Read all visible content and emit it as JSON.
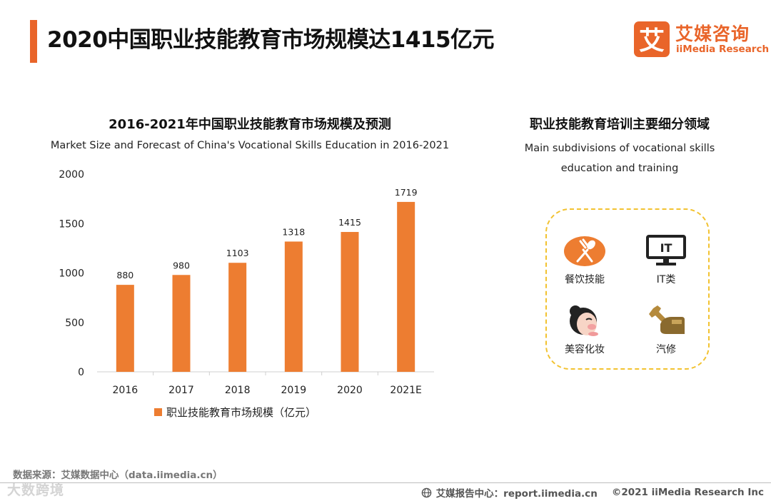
{
  "header": {
    "title": "2020中国职业技能教育市场规模达1415亿元",
    "brand_cn": "艾媒咨询",
    "brand_en": "iiMedia Research",
    "brand_logo_glyph": "艾"
  },
  "chart_data": {
    "type": "bar",
    "title": "2016-2021年中国职业技能教育市场规模及预测",
    "subtitle": "Market Size and Forecast of China's Vocational Skills Education in 2016-2021",
    "categories": [
      "2016",
      "2017",
      "2018",
      "2019",
      "2020",
      "2021E"
    ],
    "series": [
      {
        "name": "职业技能教育市场规模（亿元）",
        "values": [
          880,
          980,
          1103,
          1318,
          1415,
          1719
        ]
      }
    ],
    "ylim": [
      0,
      2000
    ],
    "yticks": [
      0,
      500,
      1000,
      1500,
      2000
    ],
    "xlabel": "",
    "ylabel": "",
    "grid": false,
    "legend_position": "bottom",
    "colors": {
      "bar": "#ed7d31"
    }
  },
  "subdivisions": {
    "title": "职业技能教育培训主要细分领域",
    "desc_lines": [
      "Main subdivisions of vocational skills",
      "education and training"
    ],
    "items": [
      {
        "label": "餐饮技能",
        "icon": "fork-spoon-icon"
      },
      {
        "label": "IT类",
        "icon": "monitor-icon"
      },
      {
        "label": "美容化妆",
        "icon": "makeup-face-icon"
      },
      {
        "label": "汽修",
        "icon": "wrench-hand-icon"
      }
    ]
  },
  "footer": {
    "source": "数据来源：艾媒数据中心（data.iimedia.cn）",
    "report": "艾媒报告中心：report.iimedia.cn",
    "copyright": "©2021  iiMedia Research  Inc",
    "watermark": "大数跨境"
  },
  "colors": {
    "accent": "#e9652a",
    "bar": "#ed7d31",
    "dashed_border": "#f2c230"
  }
}
